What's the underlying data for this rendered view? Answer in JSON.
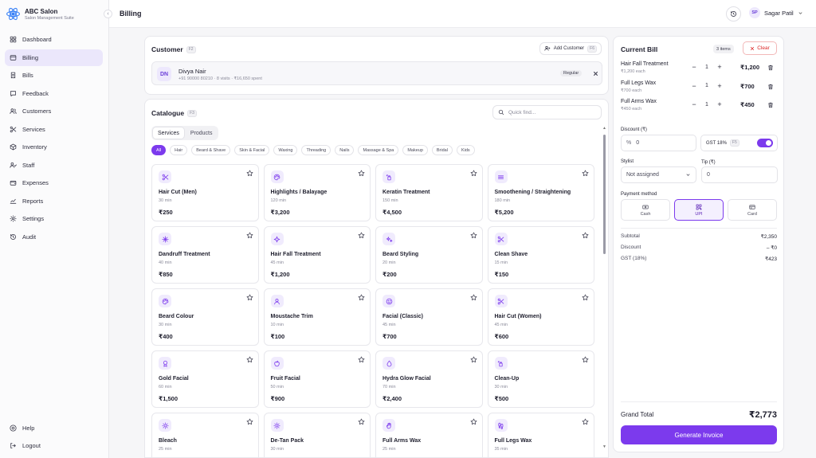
{
  "brand": {
    "name": "ABC Salon",
    "subtitle": "Salon Management Suite"
  },
  "sidebar": {
    "items": [
      {
        "label": "Dashboard",
        "icon": "dashboard-icon",
        "active": false
      },
      {
        "label": "Billing",
        "icon": "billing-icon",
        "active": true
      },
      {
        "label": "Bills",
        "icon": "bills-icon",
        "active": false
      },
      {
        "label": "Feedback",
        "icon": "feedback-icon",
        "active": false
      },
      {
        "label": "Customers",
        "icon": "customers-icon",
        "active": false
      },
      {
        "label": "Services",
        "icon": "scissors-icon",
        "active": false
      },
      {
        "label": "Inventory",
        "icon": "inventory-icon",
        "active": false
      },
      {
        "label": "Staff",
        "icon": "staff-icon",
        "active": false
      },
      {
        "label": "Expenses",
        "icon": "wallet-icon",
        "active": false
      },
      {
        "label": "Reports",
        "icon": "reports-icon",
        "active": false
      },
      {
        "label": "Settings",
        "icon": "gear-icon",
        "active": false
      },
      {
        "label": "Audit",
        "icon": "history-icon",
        "active": false
      }
    ],
    "help": "Help",
    "logout": "Logout"
  },
  "header": {
    "title": "Billing",
    "user_initials": "SP",
    "user_name": "Sagar Patil"
  },
  "customer": {
    "title": "Customer",
    "shortcut": "F2",
    "add_label": "Add Customer",
    "add_shortcut": "F6",
    "initials": "DN",
    "name": "Divya Nair",
    "meta": "+91 90000 80210 · 8 visits · ₹16,650 spent",
    "tag": "Regular"
  },
  "catalogue": {
    "title": "Catalogue",
    "shortcut": "F3",
    "search_placeholder": "Quick find...",
    "tabs": [
      {
        "label": "Services",
        "active": true
      },
      {
        "label": "Products",
        "active": false
      }
    ],
    "chips": [
      "All",
      "Hair",
      "Beard & Shave",
      "Skin & Facial",
      "Waxing",
      "Threading",
      "Nails",
      "Massage & Spa",
      "Makeup",
      "Bridal",
      "Kids"
    ],
    "items": [
      {
        "name": "Hair Cut (Men)",
        "duration": "30 min",
        "price": "₹250",
        "icon": "scissors-icon"
      },
      {
        "name": "Highlights / Balayage",
        "duration": "120 min",
        "price": "₹3,200",
        "icon": "palette-icon"
      },
      {
        "name": "Keratin Treatment",
        "duration": "150 min",
        "price": "₹4,500",
        "icon": "spray-icon"
      },
      {
        "name": "Smoothening / Straightening",
        "duration": "180 min",
        "price": "₹5,200",
        "icon": "lines-icon"
      },
      {
        "name": "Dandruff Treatment",
        "duration": "40 min",
        "price": "₹850",
        "icon": "snowflake-icon"
      },
      {
        "name": "Hair Fall Treatment",
        "duration": "45 min",
        "price": "₹1,200",
        "icon": "sparkle-icon"
      },
      {
        "name": "Beard Styling",
        "duration": "20 min",
        "price": "₹200",
        "icon": "sparkles-icon"
      },
      {
        "name": "Clean Shave",
        "duration": "15 min",
        "price": "₹150",
        "icon": "scissors-icon"
      },
      {
        "name": "Beard Colour",
        "duration": "30 min",
        "price": "₹400",
        "icon": "palette-icon"
      },
      {
        "name": "Moustache Trim",
        "duration": "10 min",
        "price": "₹100",
        "icon": "person-icon"
      },
      {
        "name": "Facial (Classic)",
        "duration": "45 min",
        "price": "₹700",
        "icon": "smile-icon"
      },
      {
        "name": "Hair Cut (Women)",
        "duration": "45 min",
        "price": "₹600",
        "icon": "scissors-icon"
      },
      {
        "name": "Gold Facial",
        "duration": "60 min",
        "price": "₹1,500",
        "icon": "award-icon"
      },
      {
        "name": "Fruit Facial",
        "duration": "50 min",
        "price": "₹900",
        "icon": "apple-icon"
      },
      {
        "name": "Hydra Glow Facial",
        "duration": "70 min",
        "price": "₹2,400",
        "icon": "droplet-icon"
      },
      {
        "name": "Clean-Up",
        "duration": "30 min",
        "price": "₹500",
        "icon": "spray-icon"
      },
      {
        "name": "Bleach",
        "duration": "25 min",
        "price": "",
        "icon": "sun-icon"
      },
      {
        "name": "De-Tan Pack",
        "duration": "30 min",
        "price": "",
        "icon": "sun-icon"
      },
      {
        "name": "Full Arms Wax",
        "duration": "25 min",
        "price": "",
        "icon": "hand-icon"
      },
      {
        "name": "Full Legs Wax",
        "duration": "35 min",
        "price": "",
        "icon": "footprints-icon"
      }
    ]
  },
  "bill": {
    "title": "Current Bill",
    "items_badge": "3 items",
    "clear_label": "Clear",
    "items": [
      {
        "name": "Hair Fall Treatment",
        "each": "₹1,200 each",
        "qty": "1",
        "price": "₹1,200"
      },
      {
        "name": "Full Legs Wax",
        "each": "₹700 each",
        "qty": "1",
        "price": "₹700"
      },
      {
        "name": "Full Arms Wax",
        "each": "₹450 each",
        "qty": "1",
        "price": "₹450"
      }
    ],
    "discount_label": "Discount (₹)",
    "discount_prefix": "%",
    "discount_value": "0",
    "gst_label": "GST 18%",
    "gst_shortcut": "F5",
    "gst_enabled": true,
    "stylist_label": "Stylist",
    "stylist_value": "Not assigned",
    "tip_label": "Tip (₹)",
    "tip_value": "0",
    "payment_label": "Payment method",
    "payments": [
      {
        "label": "Cash",
        "icon": "cash-icon",
        "active": false
      },
      {
        "label": "UPI",
        "icon": "qr-icon",
        "active": true
      },
      {
        "label": "Card",
        "icon": "card-icon",
        "active": false
      }
    ],
    "summary": [
      {
        "label": "Subtotal",
        "value": "₹2,350"
      },
      {
        "label": "Discount",
        "value": "– ₹0"
      },
      {
        "label": "GST (18%)",
        "value": "₹423"
      }
    ],
    "grand_label": "Grand Total",
    "grand_value": "₹2,773",
    "generate_label": "Generate Invoice"
  },
  "colors": {
    "accent": "#7c3aed",
    "danger": "#dc2626",
    "active_nav_bg": "#ebe7fb"
  }
}
